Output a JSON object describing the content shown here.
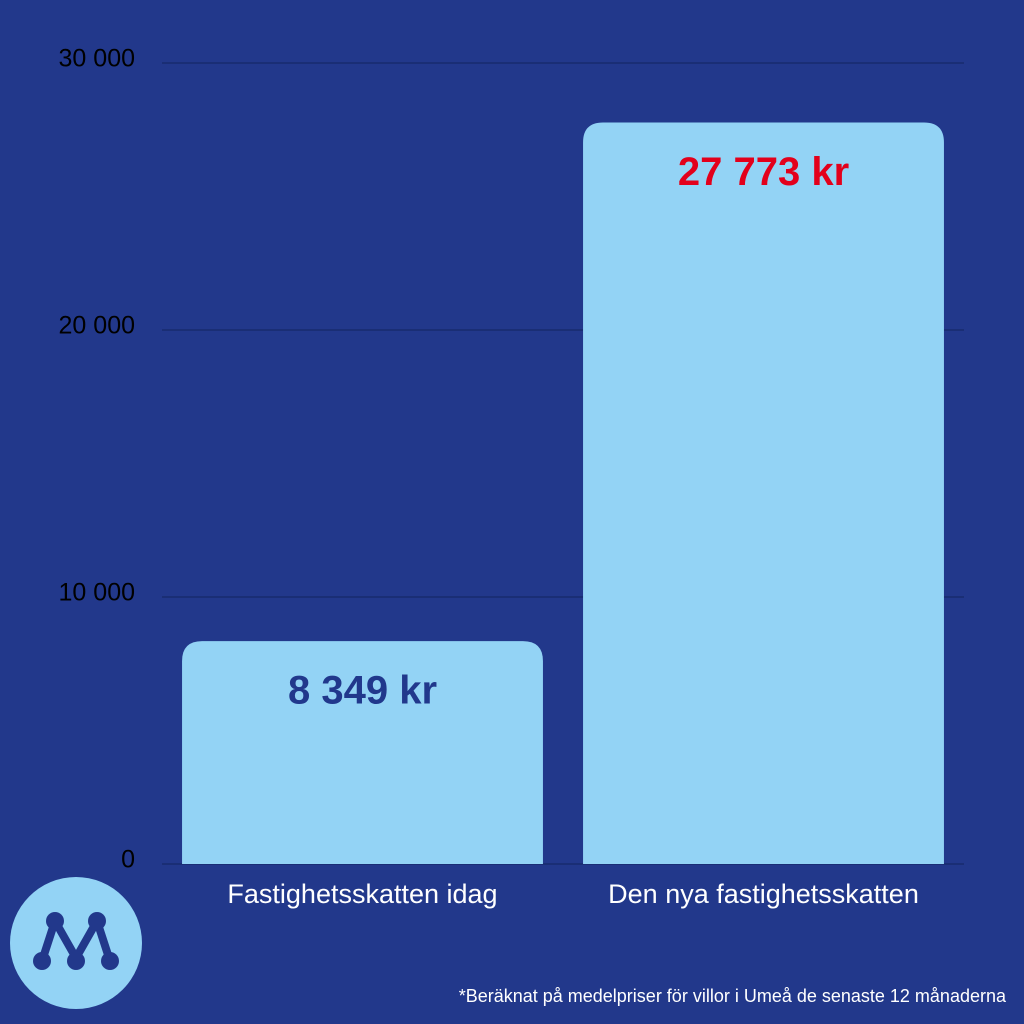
{
  "chart_data": {
    "type": "bar",
    "categories": [
      "Fastighetsskatten idag",
      "Den nya fastighetsskatten"
    ],
    "values": [
      8349,
      27773
    ],
    "value_labels": [
      "8 349 kr",
      "27 773 kr"
    ],
    "value_label_colors": [
      "#21388c",
      "#e3001b"
    ],
    "color": "#93d3f5",
    "ylim": [
      0,
      30000
    ],
    "yticks": [
      0,
      {
        "value": 10000,
        "label": "10 000"
      },
      {
        "value": 20000,
        "label": "20 000"
      },
      {
        "value": 30000,
        "label": "30 000"
      }
    ],
    "grid": true,
    "footnote": "*Beräknat på medelpriser för villor i Umeå de senaste 12 månaderna"
  }
}
